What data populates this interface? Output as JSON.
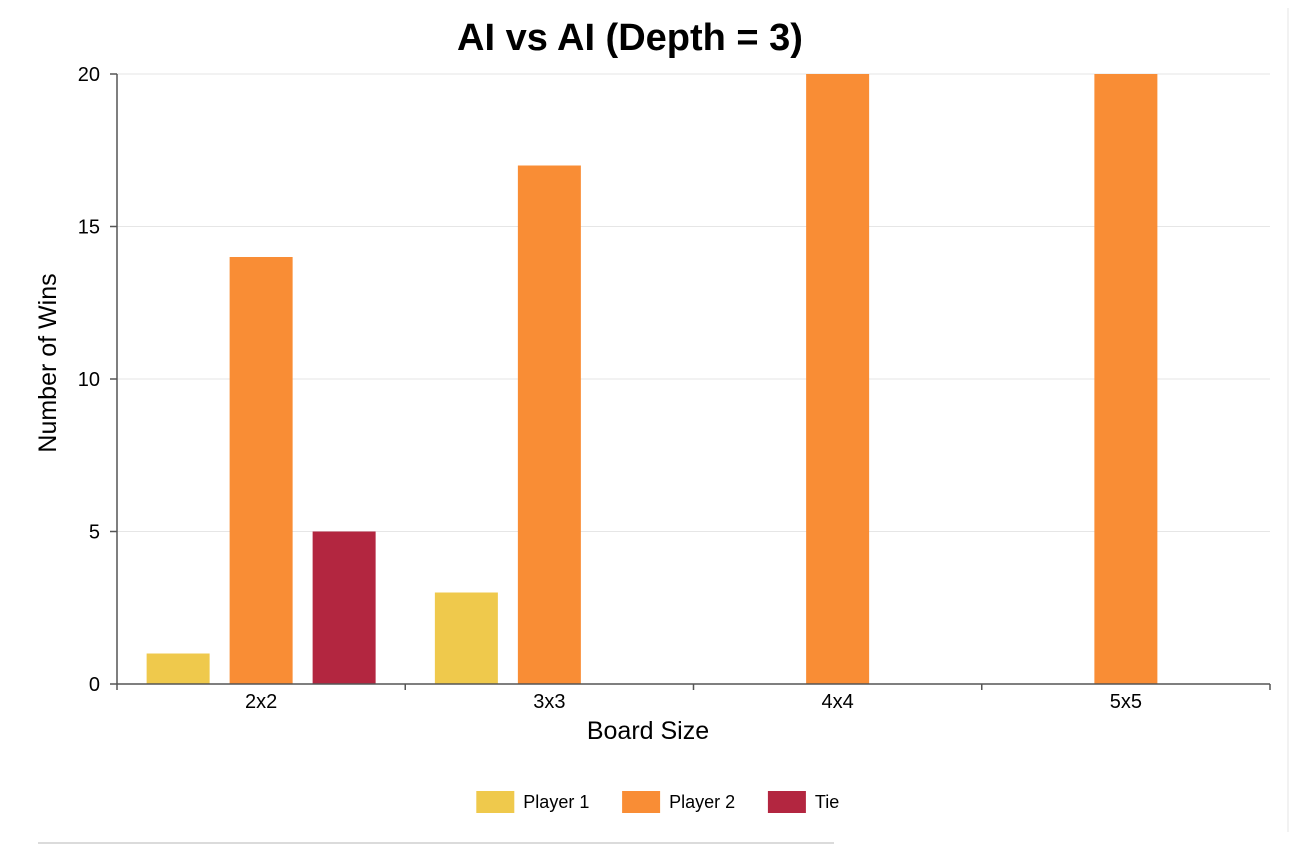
{
  "chart_data": {
    "type": "bar",
    "title": "AI vs AI (Depth = 3)",
    "xlabel": "Board Size",
    "ylabel": "Number of Wins",
    "categories": [
      "2x2",
      "3x3",
      "4x4",
      "5x5"
    ],
    "series": [
      {
        "name": "Player 1",
        "color": "#efc94c",
        "values": [
          1,
          3,
          0,
          0
        ]
      },
      {
        "name": "Player 2",
        "color": "#f98d35",
        "values": [
          14,
          17,
          20,
          20
        ]
      },
      {
        "name": "Tie",
        "color": "#b32640",
        "values": [
          5,
          0,
          0,
          0
        ]
      }
    ],
    "ylim": [
      0,
      20
    ],
    "yticks": [
      0,
      5,
      10,
      15,
      20
    ],
    "grid": true,
    "legend_position": "bottom-center"
  }
}
